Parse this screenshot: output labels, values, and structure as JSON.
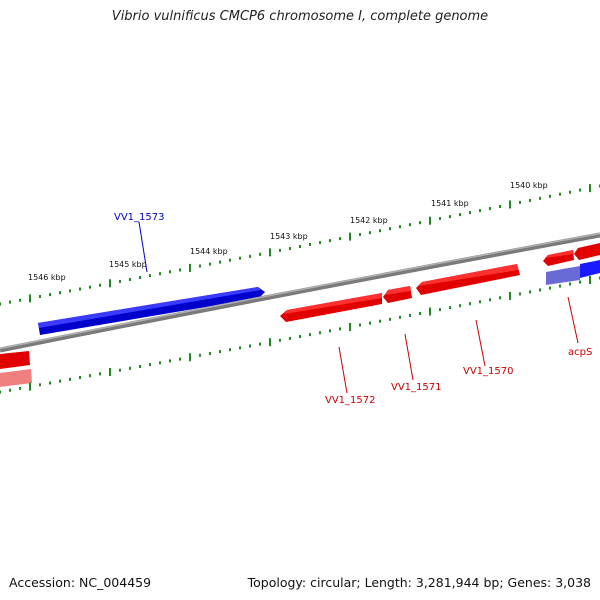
{
  "title": "Vibrio vulnificus CMCP6 chromosome I, complete genome",
  "footer": {
    "accession": "Accession: NC_004459",
    "stats": "Topology: circular; Length: 3,281,944 bp; Genes: 3,038"
  },
  "colors": {
    "forward": "#ff0000",
    "reverse": "#0000ff",
    "backbone": "#808080",
    "ticks": "#1e8a1e"
  },
  "kbp_labels": [
    "1540 kbp",
    "1541 kbp",
    "1542 kbp",
    "1543 kbp",
    "1544 kbp",
    "1545 kbp",
    "1546 kbp"
  ],
  "genes": [
    {
      "name": "VV1_1573",
      "strand": "reverse"
    },
    {
      "name": "VV1_1572",
      "strand": "forward"
    },
    {
      "name": "VV1_1571",
      "strand": "forward"
    },
    {
      "name": "VV1_1570",
      "strand": "forward"
    },
    {
      "name": "acpS",
      "strand": "forward"
    }
  ]
}
